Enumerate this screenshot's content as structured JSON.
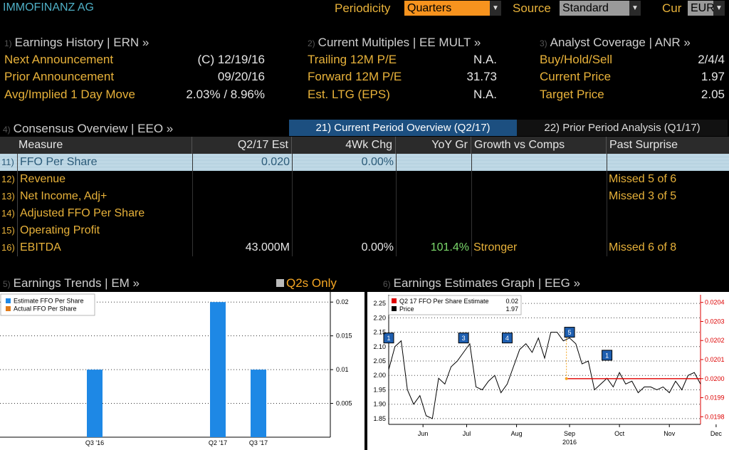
{
  "header": {
    "company": "IMMOFINANZ AG",
    "periodicity_label": "Periodicity",
    "periodicity_value": "Quarters",
    "source_label": "Source",
    "source_value": "Standard",
    "cur_label": "Cur",
    "cur_value": "EUR"
  },
  "earnings_history": {
    "num": "1)",
    "title": "Earnings History | ERN »",
    "rows": [
      {
        "label": "Next Announcement",
        "value": "(C)  12/19/16"
      },
      {
        "label": "Prior Announcement",
        "value": "09/20/16"
      },
      {
        "label": "Avg/Implied 1 Day Move",
        "value": "2.03% / 8.96%"
      }
    ]
  },
  "current_multiples": {
    "num": "2)",
    "title": "Current Multiples | EE MULT »",
    "rows": [
      {
        "label": "Trailing 12M P/E",
        "value": "N.A."
      },
      {
        "label": "Forward 12M P/E",
        "value": "31.73"
      },
      {
        "label": "Est. LTG (EPS)",
        "value": "N.A."
      }
    ]
  },
  "analyst_coverage": {
    "num": "3)",
    "title": "Analyst Coverage | ANR »",
    "rows": [
      {
        "label": "Buy/Hold/Sell",
        "value": "2/4/4"
      },
      {
        "label": "Current Price",
        "value": "1.97"
      },
      {
        "label": "Target Price",
        "value": "2.05"
      }
    ]
  },
  "consensus": {
    "num": "4)",
    "title": "Consensus Overview | EEO »",
    "tab_current": "21) Current Period Overview (Q2/17)",
    "tab_prior": "22) Prior Period Analysis (Q1/17)",
    "columns": [
      "Measure",
      "Q2/17 Est",
      "4Wk Chg",
      "YoY Gr",
      "Growth vs Comps",
      "Past Surprise"
    ],
    "rows": [
      {
        "num": "11)",
        "measure": "FFO Per Share",
        "est": "0.020",
        "chg": "0.00%",
        "yoy": "",
        "growth": "",
        "surprise": ""
      },
      {
        "num": "12)",
        "measure": "Revenue",
        "est": "",
        "chg": "",
        "yoy": "",
        "growth": "",
        "surprise": "Missed 5 of 6"
      },
      {
        "num": "13)",
        "measure": "Net Income, Adj+",
        "est": "",
        "chg": "",
        "yoy": "",
        "growth": "",
        "surprise": "Missed 3 of 5"
      },
      {
        "num": "14)",
        "measure": "Adjusted FFO Per Share",
        "est": "",
        "chg": "",
        "yoy": "",
        "growth": "",
        "surprise": ""
      },
      {
        "num": "15)",
        "measure": "Operating Profit",
        "est": "",
        "chg": "",
        "yoy": "",
        "growth": "",
        "surprise": ""
      },
      {
        "num": "16)",
        "measure": "EBITDA",
        "est": "43.000M",
        "chg": "0.00%",
        "yoy": "101.4%",
        "growth": "Stronger",
        "surprise": "Missed 6 of 8"
      }
    ]
  },
  "earnings_trends": {
    "num": "5)",
    "title": "Earnings Trends | EM »",
    "toggle_label": "Q2s Only",
    "colors": {
      "estimate": "#1e88e5",
      "actual": "#e07b1a"
    }
  },
  "earnings_estimates": {
    "num": "6)",
    "title": "Earnings Estimates Graph | EEG »",
    "legend_estimate": "Q2 17 FFO Per Share Estimate",
    "legend_estimate_value": "0.02",
    "legend_price": "Price",
    "legend_price_value": "1.97"
  },
  "chart_data": [
    {
      "type": "bar",
      "categories": [
        "Q3 '16",
        "Q2 '17",
        "Q3 '17"
      ],
      "series": [
        {
          "name": "Estimate FFO Per Share",
          "values": [
            0.01,
            0.02,
            0.01
          ]
        },
        {
          "name": "Actual FFO Per Share",
          "values": [
            null,
            null,
            null
          ]
        }
      ],
      "ylim": [
        0,
        0.0215
      ],
      "yticks": [
        "0.02",
        "0.015",
        "0.01",
        "0.005"
      ],
      "grid": true,
      "legend": "top-left"
    },
    {
      "type": "line",
      "x_labels": [
        "Jun",
        "Jul",
        "Aug",
        "Sep",
        "Oct",
        "Nov",
        "Dec"
      ],
      "x_year": "2016",
      "left_yticks": [
        "2.25",
        "2.20",
        "2.15",
        "2.10",
        "2.05",
        "2.00",
        "1.95",
        "1.90",
        "1.85"
      ],
      "right_yticks": [
        "0.0204",
        "0.0203",
        "0.0202",
        "0.0201",
        "0.0200",
        "0.0199",
        "0.0198"
      ],
      "ylim_left": [
        1.83,
        2.28
      ],
      "ylim_right": [
        0.01976,
        0.02044
      ],
      "series": [
        {
          "name": "Price",
          "x": [
            0,
            2,
            4,
            6,
            8,
            10,
            12,
            14,
            16,
            18,
            20,
            22,
            24,
            26,
            28,
            30,
            32,
            34,
            36,
            38,
            40,
            42,
            44,
            46,
            48,
            50,
            52,
            54,
            56,
            58,
            60,
            62,
            64,
            66,
            68,
            70,
            72,
            74,
            76,
            78,
            80,
            82,
            84,
            86,
            88,
            90,
            92,
            94,
            96,
            98,
            100
          ],
          "y": [
            2.02,
            2.1,
            2.12,
            1.95,
            1.9,
            1.93,
            1.86,
            1.85,
            1.99,
            1.97,
            2.03,
            2.05,
            2.08,
            2.11,
            1.96,
            1.95,
            1.98,
            2.0,
            1.94,
            1.97,
            2.03,
            2.09,
            2.11,
            2.08,
            2.13,
            2.06,
            2.15,
            2.15,
            2.12,
            2.13,
            2.11,
            2.04,
            2.05,
            1.95,
            1.97,
            1.99,
            1.96,
            2.01,
            1.97,
            1.98,
            1.94,
            1.96,
            1.96,
            1.95,
            1.96,
            1.94,
            1.98,
            1.95,
            2.0,
            2.01,
            1.97
          ]
        },
        {
          "name": "Q2 17 FFO Per Share Estimate",
          "x": [
            57,
            100
          ],
          "y": [
            0.02,
            0.02
          ]
        }
      ],
      "markers": [
        "1",
        "3",
        "4",
        "5",
        "1"
      ],
      "legend": "top-left"
    }
  ]
}
